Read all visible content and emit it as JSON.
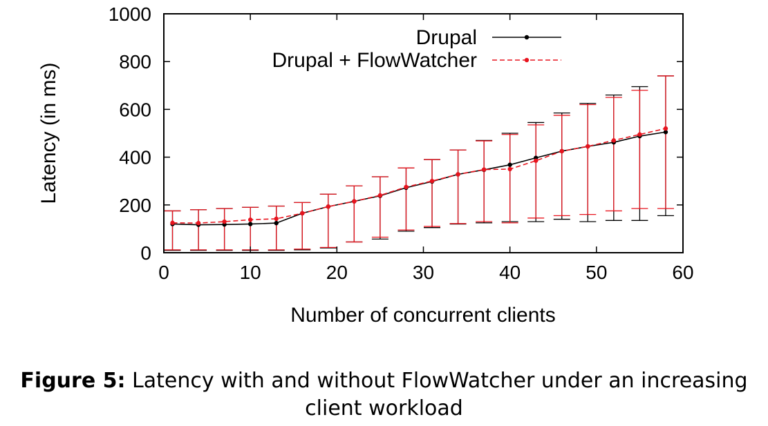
{
  "chart_data": {
    "type": "line",
    "xlabel": "Number of concurrent clients",
    "ylabel": "Latency (in ms)",
    "xlim": [
      0,
      60
    ],
    "ylim": [
      0,
      1000
    ],
    "xticks": [
      0,
      10,
      20,
      30,
      40,
      50,
      60
    ],
    "yticks": [
      0,
      200,
      400,
      600,
      800,
      1000
    ],
    "grid": false,
    "legend_position": "top-right",
    "series": [
      {
        "name": "Drupal",
        "color": "#000000",
        "line_style": "solid",
        "x": [
          1,
          4,
          7,
          10,
          13,
          16,
          19,
          22,
          25,
          28,
          31,
          34,
          37,
          40,
          43,
          46,
          49,
          52,
          55,
          58
        ],
        "y": [
          120,
          117,
          118,
          120,
          124,
          165,
          193,
          215,
          238,
          272,
          298,
          328,
          347,
          368,
          397,
          425,
          445,
          462,
          488,
          505
        ],
        "err_low": [
          10,
          10,
          10,
          10,
          10,
          12,
          20,
          45,
          57,
          90,
          105,
          120,
          125,
          130,
          130,
          140,
          130,
          135,
          135,
          155
        ],
        "err_high": [
          175,
          180,
          185,
          190,
          195,
          210,
          245,
          280,
          318,
          355,
          390,
          430,
          470,
          500,
          545,
          585,
          625,
          660,
          695,
          740
        ]
      },
      {
        "name": "Drupal + FlowWatcher",
        "color": "#e8141e",
        "line_style": "dashed",
        "x": [
          1,
          4,
          7,
          10,
          13,
          16,
          19,
          22,
          25,
          28,
          31,
          34,
          37,
          40,
          43,
          46,
          49,
          52,
          55,
          58
        ],
        "y": [
          125,
          124,
          130,
          138,
          142,
          165,
          193,
          215,
          240,
          275,
          300,
          328,
          348,
          350,
          385,
          425,
          445,
          470,
          495,
          520
        ],
        "err_low": [
          12,
          12,
          12,
          12,
          12,
          15,
          22,
          45,
          65,
          95,
          110,
          122,
          130,
          125,
          145,
          155,
          160,
          175,
          185,
          185
        ],
        "err_high": [
          175,
          180,
          185,
          190,
          195,
          210,
          245,
          280,
          318,
          355,
          390,
          430,
          468,
          495,
          535,
          575,
          620,
          650,
          680,
          740
        ]
      }
    ]
  },
  "caption": {
    "label": "Figure 5:",
    "text": "Latency with and without FlowWatcher under an increasing client workload"
  }
}
